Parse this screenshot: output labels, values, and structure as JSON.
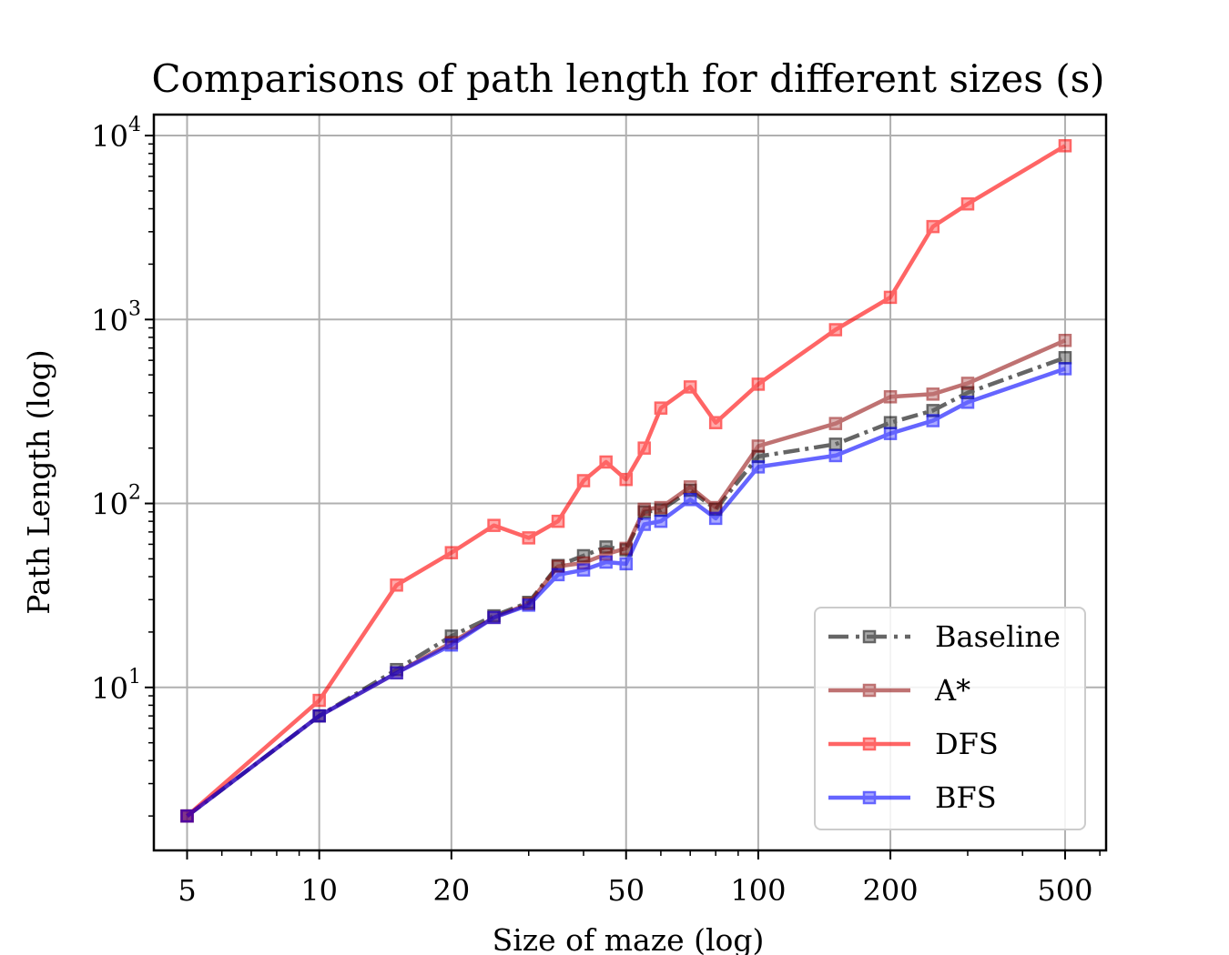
{
  "chart_data": {
    "type": "line",
    "title": "Comparisons of path length for different sizes (s)",
    "xlabel": "Size of maze (log)",
    "ylabel": "Path Length (log)",
    "xscale": "log",
    "yscale": "log",
    "xlim": [
      4.2,
      620
    ],
    "ylim": [
      1.3,
      13000
    ],
    "xticks": [
      5,
      10,
      20,
      50,
      100,
      200,
      500
    ],
    "xtick_labels": [
      "5",
      "10",
      "20",
      "50",
      "100",
      "200",
      "500"
    ],
    "yticks": [
      10,
      100,
      1000,
      10000
    ],
    "ytick_labels": [
      {
        "base": "10",
        "exp": "1"
      },
      {
        "base": "10",
        "exp": "2"
      },
      {
        "base": "10",
        "exp": "3"
      },
      {
        "base": "10",
        "exp": "4"
      }
    ],
    "grid": true,
    "legend_position": "lower-right",
    "x": [
      5,
      10,
      15,
      20,
      25,
      30,
      35,
      40,
      45,
      50,
      55,
      60,
      70,
      80,
      100,
      150,
      200,
      250,
      300,
      500
    ],
    "series": [
      {
        "name": "Baseline",
        "color": "#000000",
        "opacity": 0.6,
        "dash": "dashdot",
        "values": [
          2,
          7,
          12.5,
          19,
          24.5,
          29,
          46,
          52,
          58,
          56,
          90,
          92,
          118,
          93,
          180,
          210,
          275,
          320,
          400,
          620
        ]
      },
      {
        "name": "A*",
        "color": "#8b0000",
        "opacity": 0.55,
        "dash": "solid",
        "values": [
          2,
          7,
          12,
          17.5,
          24,
          28.5,
          45.5,
          47.5,
          53,
          57,
          93,
          95,
          123,
          95,
          205,
          272,
          380,
          393,
          450,
          770
        ]
      },
      {
        "name": "DFS",
        "color": "#ff0000",
        "opacity": 0.6,
        "dash": "solid",
        "values": [
          2,
          8.5,
          36,
          54,
          76,
          65,
          80,
          133,
          168,
          135,
          200,
          330,
          430,
          275,
          445,
          880,
          1320,
          3200,
          4250,
          8800
        ]
      },
      {
        "name": "BFS",
        "color": "#0000ff",
        "opacity": 0.6,
        "dash": "solid",
        "values": [
          2,
          7,
          12,
          17,
          24,
          28,
          41,
          43.5,
          48,
          47,
          77,
          80,
          105,
          83,
          158,
          182,
          240,
          282,
          355,
          540
        ]
      }
    ]
  }
}
